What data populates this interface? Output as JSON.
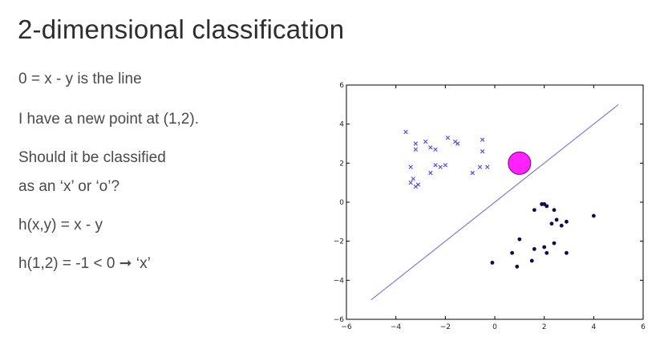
{
  "title": "2-dimensional classification",
  "lines": {
    "line_eq": "0 = x - y is the line",
    "new_point": "I have a new point at (1,2).",
    "question_1": "Should it be classified",
    "question_2": "as an ‘x’ or ‘o’?",
    "h_def": "h(x,y) = x - y",
    "h_eval": "h(1,2) = -1 < 0 ➞ ‘x’"
  },
  "chart_data": {
    "type": "scatter",
    "title": "",
    "xlabel": "",
    "ylabel": "",
    "xlim": [
      -6,
      6
    ],
    "ylim": [
      -6,
      6
    ],
    "x_ticks": [
      -6,
      -4,
      -2,
      0,
      2,
      4,
      6
    ],
    "y_ticks": [
      -6,
      -4,
      -2,
      0,
      2,
      4,
      6
    ],
    "x_tick_labels": [
      "−6",
      "−4",
      "−2",
      "0",
      "2",
      "4",
      "6"
    ],
    "y_tick_labels": [
      "−6",
      "−4",
      "−2",
      "0",
      "2",
      "4",
      "6"
    ],
    "grid": false,
    "line": {
      "points": [
        [
          -5,
          -5
        ],
        [
          5,
          5
        ]
      ],
      "color": "#7b7bdd"
    },
    "series": [
      {
        "marker": "x",
        "color": "#4a4ae6",
        "points": [
          [
            -3.6,
            3.6
          ],
          [
            -3.2,
            3.0
          ],
          [
            -2.8,
            3.1
          ],
          [
            -3.2,
            2.7
          ],
          [
            -2.6,
            2.8
          ],
          [
            -2.4,
            2.7
          ],
          [
            -1.9,
            3.3
          ],
          [
            -1.6,
            3.1
          ],
          [
            -1.5,
            3.0
          ],
          [
            -0.5,
            3.2
          ],
          [
            -0.5,
            2.6
          ],
          [
            -3.4,
            1.8
          ],
          [
            -2.4,
            1.9
          ],
          [
            -2.2,
            1.8
          ],
          [
            -2.0,
            1.9
          ],
          [
            -2.6,
            1.5
          ],
          [
            -0.9,
            1.5
          ],
          [
            -0.6,
            1.8
          ],
          [
            -0.3,
            1.8
          ],
          [
            -3.3,
            1.2
          ],
          [
            -3.1,
            0.9
          ],
          [
            -3.2,
            0.8
          ],
          [
            -3.4,
            1.0
          ]
        ]
      },
      {
        "marker": "o",
        "color": "#0b0b55",
        "points": [
          [
            1.6,
            -0.4
          ],
          [
            1.9,
            -0.1
          ],
          [
            2.0,
            -0.1
          ],
          [
            2.1,
            -0.2
          ],
          [
            2.4,
            -0.4
          ],
          [
            2.5,
            -0.9
          ],
          [
            2.3,
            -1.1
          ],
          [
            2.7,
            -1.2
          ],
          [
            2.9,
            -1.0
          ],
          [
            4.0,
            -0.7
          ],
          [
            1.0,
            -1.9
          ],
          [
            1.6,
            -2.4
          ],
          [
            2.0,
            -2.3
          ],
          [
            0.7,
            -2.6
          ],
          [
            2.1,
            -2.6
          ],
          [
            1.5,
            -3.0
          ],
          [
            0.9,
            -3.3
          ],
          [
            2.9,
            -2.6
          ],
          [
            -0.1,
            -3.1
          ],
          [
            2.4,
            -2.1
          ]
        ]
      }
    ],
    "highlight_point": {
      "x": 1,
      "y": 2,
      "color": "#ff22ff",
      "edge_color": "#7a007a"
    }
  }
}
